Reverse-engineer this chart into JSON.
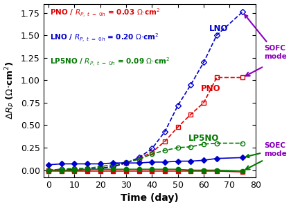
{
  "xlabel": "Time (day)",
  "xlim": [
    -2,
    80
  ],
  "ylim": [
    -0.08,
    1.85
  ],
  "yticks": [
    0.0,
    0.25,
    0.5,
    0.75,
    1.0,
    1.25,
    1.5,
    1.75
  ],
  "xticks": [
    0,
    10,
    20,
    30,
    40,
    50,
    60,
    70,
    80
  ],
  "PNO_SOFC_x": [
    0,
    5,
    10,
    15,
    20,
    25,
    30,
    35,
    40,
    45,
    50,
    55,
    60,
    65,
    75
  ],
  "PNO_SOFC_y": [
    0.0,
    0.0,
    0.0,
    0.01,
    0.02,
    0.04,
    0.08,
    0.13,
    0.2,
    0.32,
    0.48,
    0.62,
    0.75,
    1.03,
    1.03
  ],
  "PNO_SOEC_x": [
    0,
    5,
    10,
    15,
    20,
    25,
    30,
    35,
    40,
    45,
    50,
    55,
    60,
    65,
    75
  ],
  "PNO_SOEC_y": [
    -0.01,
    -0.01,
    -0.01,
    -0.01,
    -0.01,
    -0.01,
    -0.01,
    -0.01,
    -0.01,
    -0.01,
    -0.01,
    -0.01,
    -0.01,
    -0.01,
    -0.02
  ],
  "LNO_SOFC_x": [
    0,
    5,
    10,
    15,
    20,
    25,
    30,
    35,
    40,
    45,
    50,
    55,
    60,
    65,
    75
  ],
  "LNO_SOFC_y": [
    0.0,
    0.01,
    0.01,
    0.01,
    0.02,
    0.04,
    0.08,
    0.14,
    0.24,
    0.43,
    0.72,
    0.95,
    1.2,
    1.5,
    1.76
  ],
  "LNO_SOEC_x": [
    0,
    5,
    10,
    15,
    20,
    25,
    30,
    35,
    40,
    45,
    50,
    55,
    60,
    65,
    75
  ],
  "LNO_SOEC_y": [
    0.06,
    0.07,
    0.07,
    0.07,
    0.07,
    0.08,
    0.08,
    0.08,
    0.09,
    0.09,
    0.1,
    0.1,
    0.11,
    0.13,
    0.14
  ],
  "LP5NO_SOFC_x": [
    0,
    5,
    10,
    15,
    20,
    25,
    30,
    35,
    40,
    45,
    50,
    55,
    60,
    65,
    75
  ],
  "LP5NO_SOFC_y": [
    0.0,
    0.01,
    0.02,
    0.02,
    0.04,
    0.06,
    0.09,
    0.12,
    0.18,
    0.22,
    0.25,
    0.26,
    0.29,
    0.3,
    0.3
  ],
  "LP5NO_SOEC_x": [
    0,
    5,
    10,
    15,
    20,
    25,
    30,
    35,
    40,
    45,
    50,
    55,
    60,
    65,
    75
  ],
  "LP5NO_SOEC_y": [
    0.0,
    0.0,
    0.0,
    0.01,
    0.01,
    0.01,
    0.01,
    0.01,
    0.01,
    0.01,
    0.01,
    0.0,
    0.0,
    0.0,
    -0.01
  ],
  "color_PNO": "#dd0000",
  "color_LNO": "#0000cc",
  "color_LP5NO": "#007700",
  "color_arrow": "#8800bb"
}
